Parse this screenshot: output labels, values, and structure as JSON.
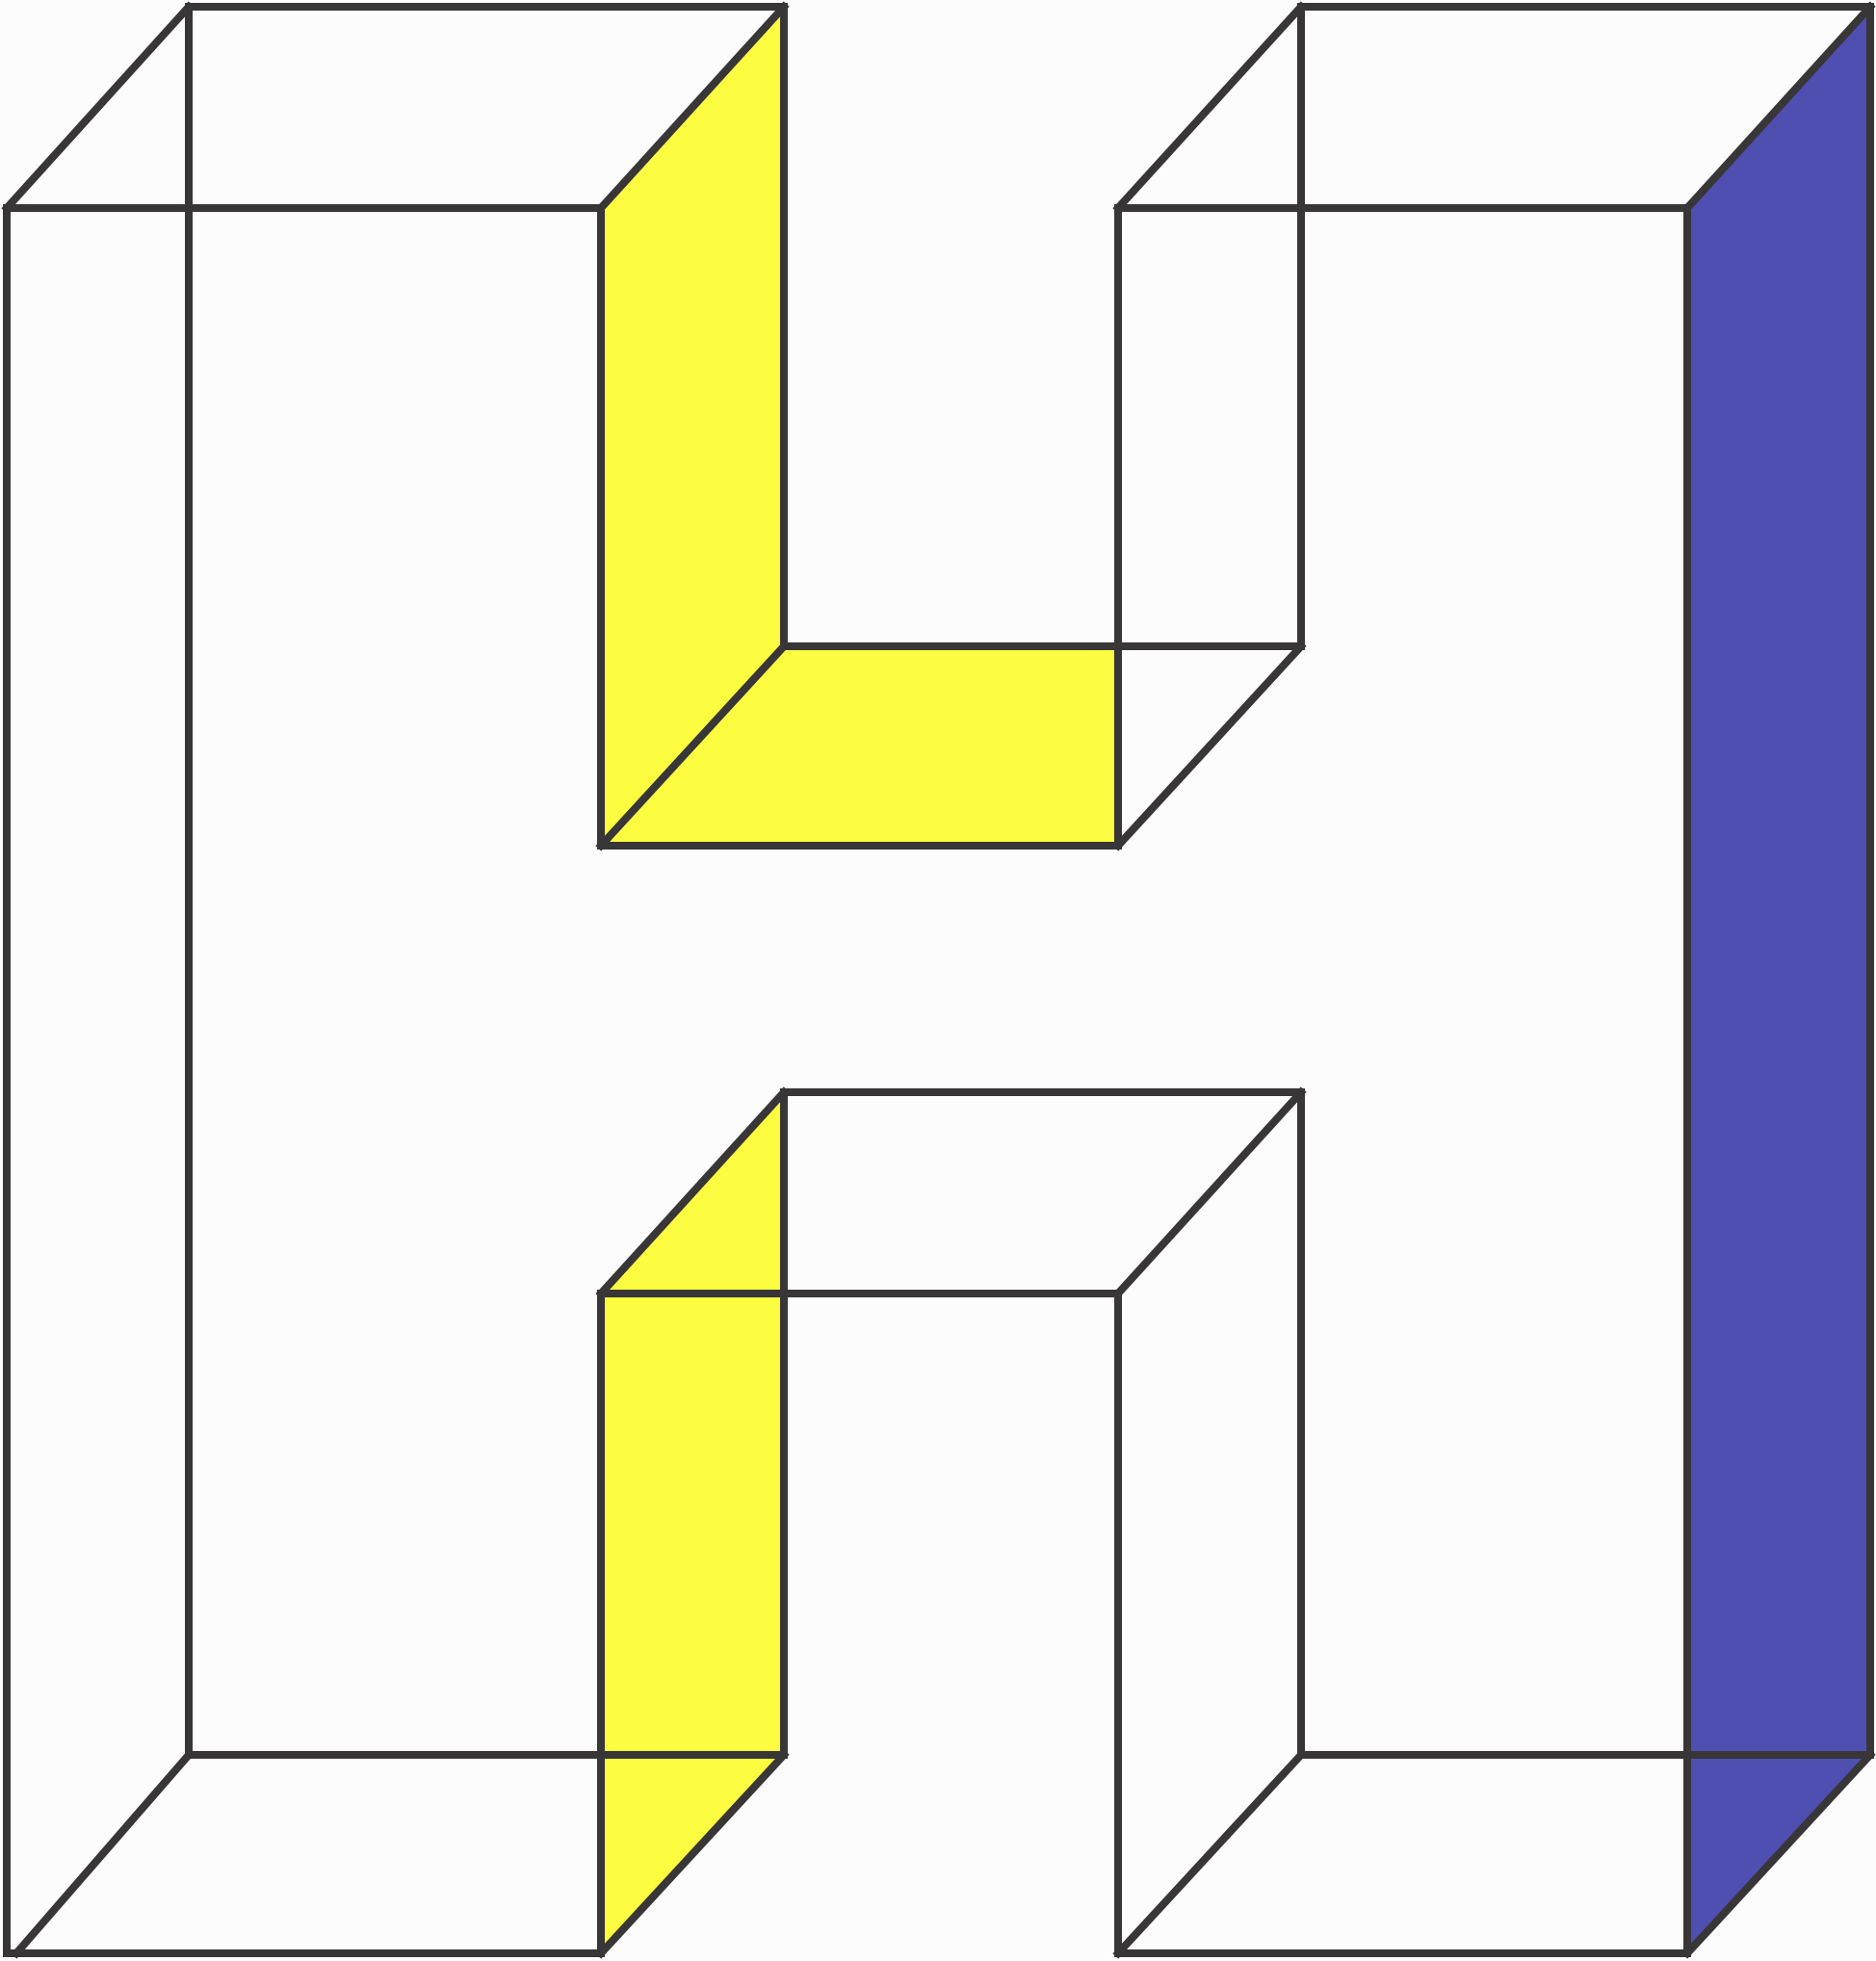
{
  "figure": {
    "kind": "isometric wireframe letter H",
    "letter": "H",
    "colors": {
      "background": "#fcfcfc",
      "stroke": "#383637",
      "front_face": "#fcfcfc",
      "inner_side_face": "#fcfc40",
      "outer_side_face": "#4e4fb0"
    },
    "faces": [
      {
        "name": "front-face",
        "fill": "front_face"
      },
      {
        "name": "notch-left-wall-face",
        "fill": "inner_side_face"
      },
      {
        "name": "notch-floor-face",
        "fill": "inner_side_face"
      },
      {
        "name": "lower-notch-left-wall-face",
        "fill": "inner_side_face"
      },
      {
        "name": "right-side-face",
        "fill": "outer_side_face"
      }
    ]
  }
}
